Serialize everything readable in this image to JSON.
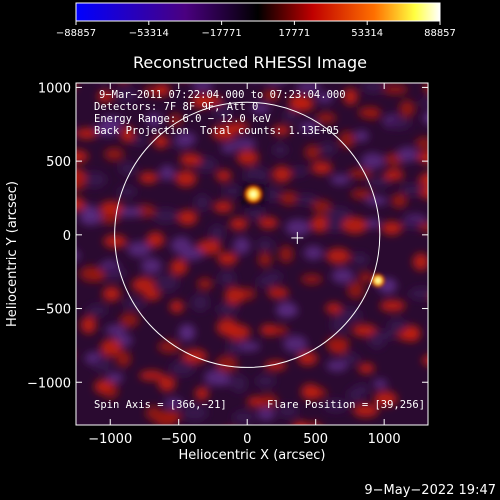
{
  "chart_data": {
    "type": "heatmap",
    "title": "Reconstructed RHESSI Image",
    "xlabel": "Heliocentric X (arcsec)",
    "ylabel": "Heliocentric Y (arcsec)",
    "xlim": [
      -1250,
      1320
    ],
    "ylim": [
      -1290,
      1030
    ],
    "x_ticks": [
      -1000,
      -500,
      0,
      500,
      1000
    ],
    "y_ticks": [
      -1000,
      -500,
      0,
      500,
      1000
    ],
    "x_tick_labels": [
      "−1000",
      "−500",
      "0",
      "500",
      "1000"
    ],
    "y_tick_labels": [
      "−1000",
      "−500",
      "0",
      "500",
      "1000"
    ],
    "colorbar": {
      "min": -88857,
      "max": 88857,
      "ticks": [
        "−88857",
        "−53314",
        "−17771",
        "17771",
        "53314",
        "88857"
      ]
    },
    "sources": [
      {
        "x": 45,
        "y": 275,
        "peak": 88857
      },
      {
        "x": 955,
        "y": -310,
        "peak": 60000
      }
    ],
    "solar_limb": {
      "center": [
        0,
        0
      ],
      "radius_arcsec": 968
    },
    "spin_axis": [
      366,
      -21
    ],
    "flare_position": [
      39,
      256
    ],
    "annotations": {
      "time": "9−Mar−2011 07:22:04.000 to 07:23:04.000",
      "detectors": "Detectors: 7F 8F 9F, Att 0",
      "energy": "Energy Range: 6.0 − 12.0 keV",
      "method": "Back Projection",
      "counts": "Total counts: 1.13E+05",
      "spin_axis": "Spin Axis = [366,−21]",
      "flare_position": "Flare Position = [39,256]"
    }
  },
  "footer": {
    "date": "9−May−2022 19:47"
  }
}
